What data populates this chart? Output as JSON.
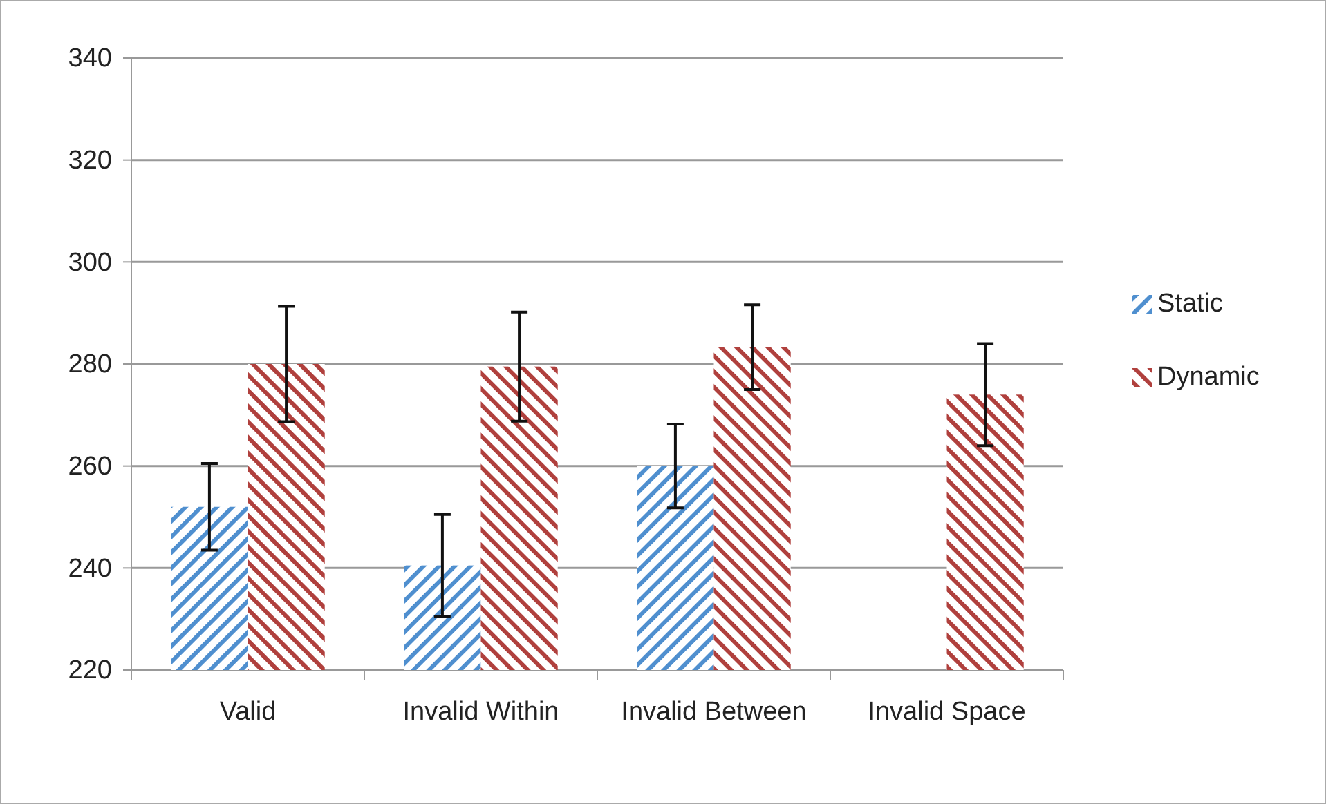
{
  "chart_data": {
    "type": "bar",
    "categories": [
      "Valid",
      "Invalid Within",
      "Invalid Between",
      "Invalid Space"
    ],
    "series": [
      {
        "name": "Static",
        "color": "#4f8fcf",
        "values": [
          252,
          240.5,
          260,
          null
        ],
        "errors": [
          8.5,
          10,
          8.2,
          null
        ]
      },
      {
        "name": "Dynamic",
        "color": "#b0403d",
        "values": [
          280,
          279.5,
          283.3,
          274
        ],
        "errors": [
          11.3,
          10.7,
          8.3,
          10
        ]
      }
    ],
    "ylim": [
      220,
      340
    ],
    "yticks": [
      220,
      240,
      260,
      280,
      300,
      320,
      340
    ],
    "grid": "y",
    "legend": "right"
  }
}
